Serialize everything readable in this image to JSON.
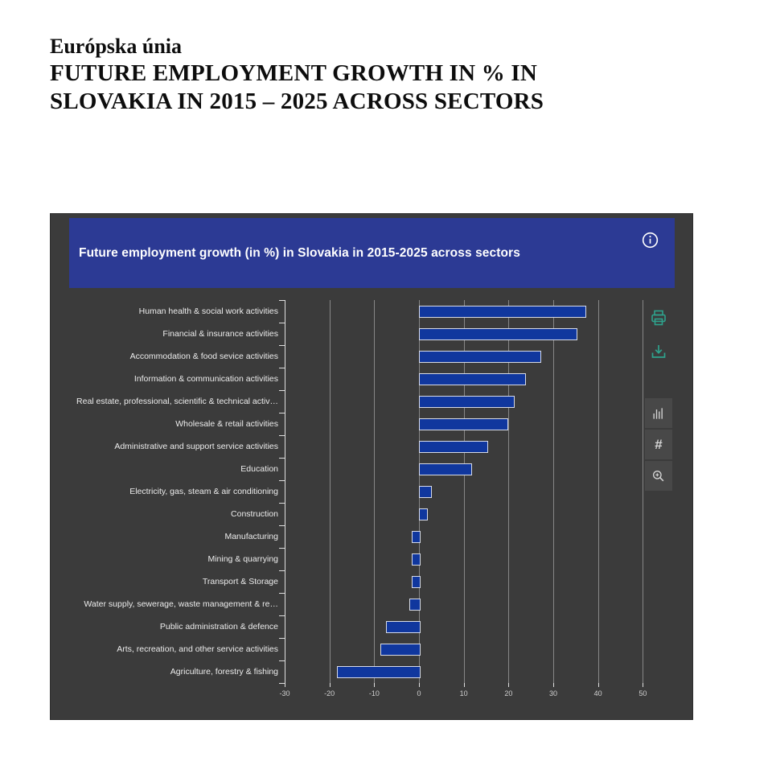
{
  "document": {
    "line1": "Európska únia",
    "line2": "FUTURE EMPLOYMENT GROWTH IN % IN",
    "line3": "SLOVAKIA IN 2015 – 2025 ACROSS SECTORS"
  },
  "chart_panel": {
    "title": "Future employment growth (in %) in Slovakia in 2015-2025 across sectors",
    "toolbar": [
      {
        "name": "info-icon"
      },
      {
        "name": "print-icon"
      },
      {
        "name": "download-icon"
      },
      {
        "name": "bar-chart-icon"
      },
      {
        "name": "hash-icon"
      },
      {
        "name": "zoom-in-icon"
      }
    ],
    "colors": {
      "panel_bg": "#3b3b3b",
      "titlebar_bg": "#2c3a94",
      "bar_fill": "#10379e",
      "bar_border": "#d7dbe7",
      "gridline": "#9b9b9b",
      "axis_text": "#cfcfcf",
      "label_text": "#ececec",
      "teal_icon": "#2ea38d",
      "button_bg": "#484848",
      "button_icon": "#d6d6d6"
    }
  },
  "chart_data": {
    "type": "bar",
    "orientation": "horizontal",
    "title": "Future employment growth (in %) in Slovakia in 2015-2025 across sectors",
    "categories": [
      "Human health & social work activities",
      "Financial & insurance activities",
      "Accommodation & food sevice activities",
      "Information & communication activities",
      "Real estate, professional, scientific & technical activ…",
      "Wholesale & retail activities",
      "Administrative and support service activities",
      "Education",
      "Electricity, gas, steam & air conditioning",
      "Construction",
      "Manufacturing",
      "Mining & quarrying",
      "Transport & Storage",
      "Water supply, sewerage, waste management & re…",
      "Public administration & defence",
      "Arts, recreation, and other service activities",
      "Agriculture, forestry & fishing"
    ],
    "values": [
      37,
      35,
      27,
      23.5,
      21,
      19.5,
      15,
      11.5,
      2.5,
      1.7,
      -1.6,
      -1.6,
      -1.6,
      -2.1,
      -7.4,
      -8.7,
      -18.3
    ],
    "xticks": [
      -30,
      -20,
      -10,
      0,
      10,
      20,
      30,
      40,
      50
    ],
    "xlim": [
      -30,
      55
    ],
    "xlabel": "",
    "ylabel": "",
    "grid": true,
    "legend": false
  }
}
